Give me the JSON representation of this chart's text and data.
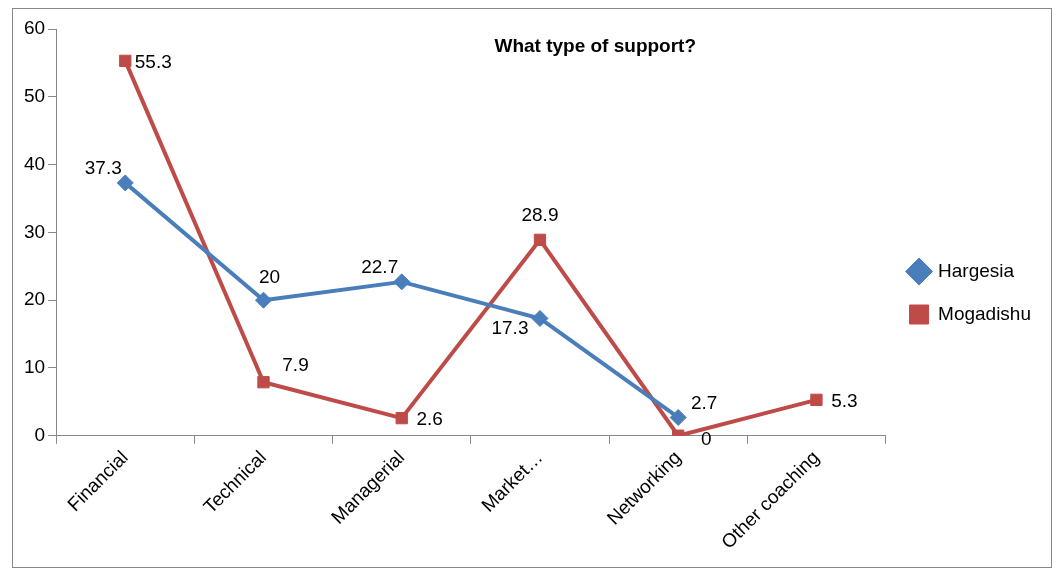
{
  "chart_data": {
    "type": "line",
    "title": "What type of support?",
    "categories": [
      "Financial",
      "Technical",
      "Managerial",
      "Market…",
      "Networking",
      "Other coaching"
    ],
    "series": [
      {
        "name": "Hargesia",
        "color": "#4a7ebb",
        "marker": "diamond",
        "values": [
          37.3,
          20,
          22.7,
          17.3,
          2.7,
          null
        ]
      },
      {
        "name": "Mogadishu",
        "color": "#be4b48",
        "marker": "square",
        "values": [
          55.3,
          7.9,
          2.6,
          28.9,
          0,
          5.3
        ]
      }
    ],
    "ylim": [
      0,
      60
    ],
    "yticks": [
      0,
      10,
      20,
      30,
      40,
      50,
      60
    ],
    "grid": false,
    "legend": "right",
    "data_labels": true
  }
}
